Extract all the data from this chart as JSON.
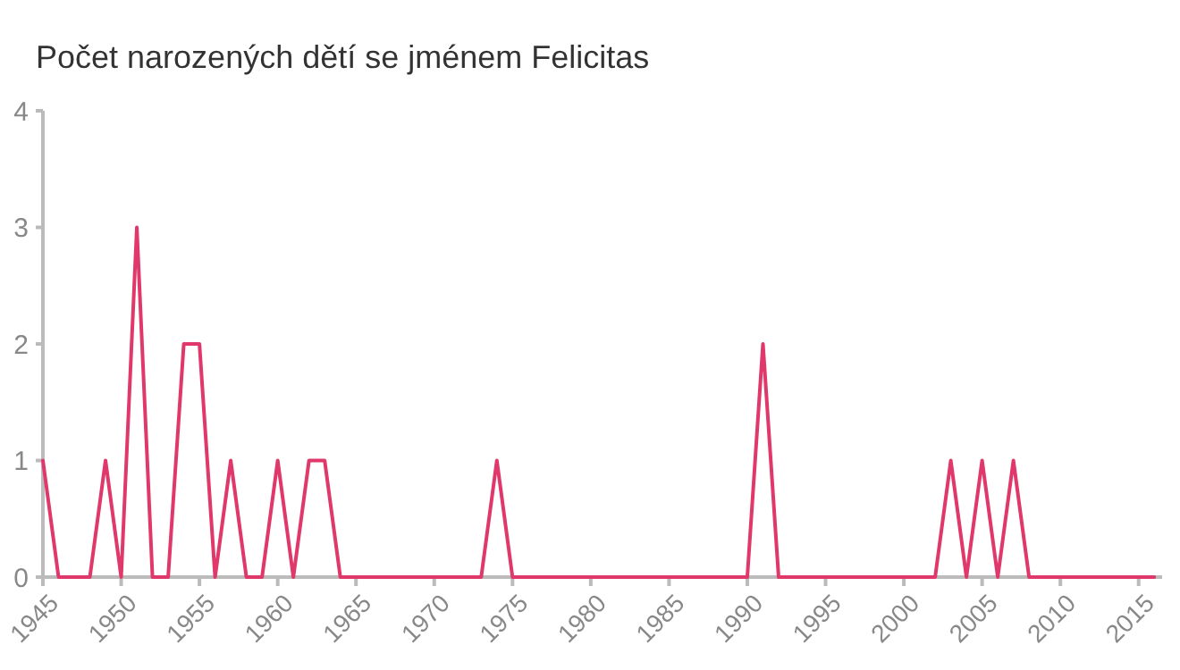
{
  "chart_data": {
    "type": "line",
    "title": "Počet narozených dětí se jménem Felicitas",
    "x": [
      1945,
      1946,
      1947,
      1948,
      1949,
      1950,
      1951,
      1952,
      1953,
      1954,
      1955,
      1956,
      1957,
      1958,
      1959,
      1960,
      1961,
      1962,
      1963,
      1964,
      1965,
      1966,
      1967,
      1968,
      1969,
      1970,
      1971,
      1972,
      1973,
      1974,
      1975,
      1976,
      1977,
      1978,
      1979,
      1980,
      1981,
      1982,
      1983,
      1984,
      1985,
      1986,
      1987,
      1988,
      1989,
      1990,
      1991,
      1992,
      1993,
      1994,
      1995,
      1996,
      1997,
      1998,
      1999,
      2000,
      2001,
      2002,
      2003,
      2004,
      2005,
      2006,
      2007,
      2008,
      2009,
      2010,
      2011,
      2012,
      2013,
      2014,
      2015,
      2016
    ],
    "series": [
      {
        "color": "#e0386b",
        "values": [
          1,
          0,
          0,
          0,
          1,
          0,
          3,
          0,
          0,
          2,
          2,
          0,
          1,
          0,
          0,
          1,
          0,
          1,
          1,
          0,
          0,
          0,
          0,
          0,
          0,
          0,
          0,
          0,
          0,
          1,
          0,
          0,
          0,
          0,
          0,
          0,
          0,
          0,
          0,
          0,
          0,
          0,
          0,
          0,
          0,
          0,
          2,
          0,
          0,
          0,
          0,
          0,
          0,
          0,
          0,
          0,
          0,
          0,
          1,
          0,
          1,
          0,
          1,
          0,
          0,
          0,
          0,
          0,
          0,
          0,
          0,
          0
        ]
      }
    ],
    "xlim": [
      1945,
      2016.5
    ],
    "xticks": [
      1945,
      1950,
      1955,
      1960,
      1965,
      1970,
      1975,
      1980,
      1985,
      1990,
      1995,
      2000,
      2005,
      2010,
      2015
    ],
    "ylim": [
      0,
      4
    ],
    "yticks": [
      0,
      1,
      2,
      3,
      4
    ],
    "grid": false,
    "marker": "none",
    "line_style": "solid"
  }
}
